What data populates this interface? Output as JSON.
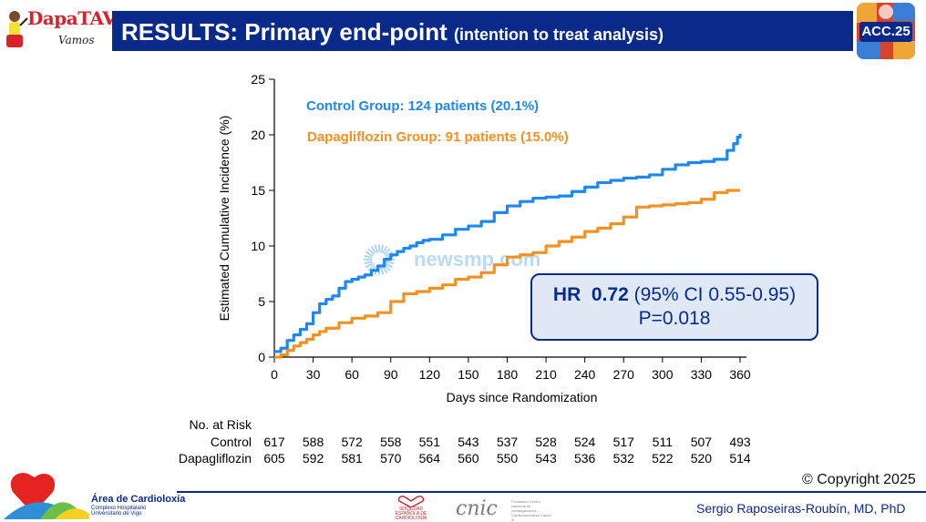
{
  "header": {
    "brand": "DapaTAVI",
    "brand_sub": "Vamos",
    "title_main": "RESULTS: Primary end-point",
    "title_sub": "(intention to treat analysis)",
    "conference_logo": "ACC.25"
  },
  "hr_box": {
    "label": "HR",
    "value": "0.72",
    "ci": "(95% CI 0.55-0.95)",
    "p_value": "P=0.018"
  },
  "watermark": "newsmp.com",
  "footer": {
    "copyright": "© Copyright 2025",
    "area_title": "Área de Cardioloxía",
    "area_sub1": "Complexo Hospitalario",
    "area_sub2": "Universitario de Vigo",
    "society": "SOCIEDAD ESPAÑOLA DE CARDIOLOGÍA",
    "cnic": "cnic",
    "cnic_sub": "Fundación Centro Nacional de Investigaciones Cardiovasculares Carlos III",
    "author": "Sergio Raposeiras-Roubín, MD, PhD"
  },
  "colors": {
    "control": "#1e88f0",
    "dapagliflozin": "#f39122",
    "navy": "#0a2a8a"
  },
  "chart_data": {
    "type": "line",
    "xlabel": "Days since Randomization",
    "ylabel": "Estimated Cumulative Incidence (%)",
    "xlim": [
      0,
      365
    ],
    "ylim": [
      0,
      25
    ],
    "xticks": [
      0,
      30,
      60,
      90,
      120,
      150,
      180,
      210,
      240,
      270,
      300,
      330,
      360
    ],
    "yticks": [
      0,
      5,
      10,
      15,
      20,
      25
    ],
    "series": [
      {
        "name": "Control Group: 124 patients (20.1%)",
        "color": "#1e88f0",
        "x": [
          0,
          5,
          10,
          15,
          20,
          25,
          30,
          35,
          40,
          45,
          50,
          55,
          60,
          65,
          70,
          75,
          80,
          85,
          90,
          95,
          100,
          105,
          110,
          115,
          120,
          130,
          140,
          150,
          160,
          170,
          180,
          190,
          200,
          210,
          220,
          230,
          240,
          250,
          260,
          270,
          280,
          290,
          300,
          310,
          320,
          330,
          340,
          350,
          355,
          358,
          360
        ],
        "y": [
          0.5,
          0.8,
          1.5,
          2.0,
          2.5,
          3.0,
          4.0,
          4.8,
          5.2,
          5.5,
          6.2,
          6.8,
          7.0,
          7.2,
          7.4,
          7.8,
          8.2,
          8.8,
          9.2,
          9.5,
          9.8,
          10.0,
          10.3,
          10.5,
          10.6,
          11.0,
          11.5,
          11.8,
          12.2,
          13.0,
          13.6,
          14.0,
          14.3,
          14.4,
          14.5,
          14.9,
          15.3,
          15.7,
          15.9,
          16.1,
          16.2,
          16.4,
          16.9,
          17.3,
          17.5,
          17.6,
          17.8,
          18.6,
          19.2,
          19.8,
          20.1
        ]
      },
      {
        "name": "Dapagliflozin Group: 91 patients (15.0%)",
        "color": "#f39122",
        "x": [
          0,
          5,
          10,
          15,
          20,
          25,
          30,
          35,
          40,
          50,
          60,
          70,
          80,
          90,
          100,
          110,
          120,
          130,
          140,
          150,
          160,
          170,
          180,
          190,
          200,
          210,
          220,
          230,
          240,
          250,
          260,
          270,
          280,
          290,
          300,
          310,
          320,
          330,
          340,
          350,
          360
        ],
        "y": [
          0.0,
          0.2,
          0.6,
          1.0,
          1.3,
          1.6,
          2.0,
          2.3,
          2.6,
          3.1,
          3.5,
          3.7,
          4.0,
          5.0,
          5.7,
          5.9,
          6.2,
          6.5,
          7.0,
          7.2,
          7.6,
          8.3,
          9.0,
          9.2,
          9.4,
          10.0,
          10.4,
          10.8,
          11.3,
          11.6,
          12.0,
          12.6,
          13.5,
          13.6,
          13.7,
          13.8,
          13.9,
          14.2,
          14.8,
          15.0,
          15.0
        ]
      }
    ],
    "risk_table": {
      "title": "No. at Risk",
      "rows": [
        {
          "label": "Control",
          "values": [
            617,
            588,
            572,
            558,
            551,
            543,
            537,
            528,
            524,
            517,
            511,
            507,
            493
          ]
        },
        {
          "label": "Dapagliflozin",
          "values": [
            605,
            592,
            581,
            570,
            564,
            560,
            550,
            543,
            536,
            532,
            522,
            520,
            514
          ]
        }
      ]
    }
  }
}
